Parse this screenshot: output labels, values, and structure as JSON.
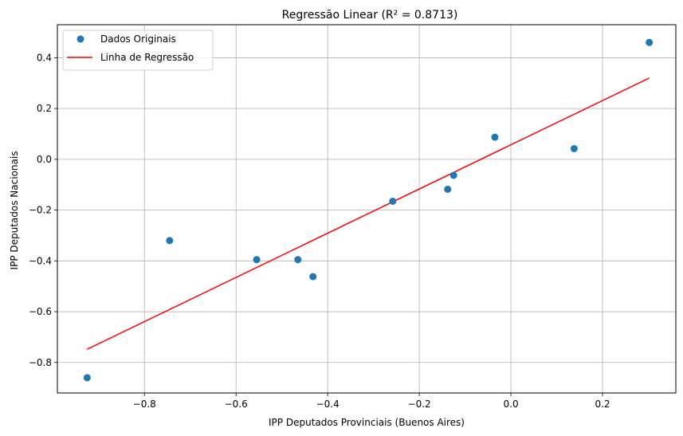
{
  "chart_data": {
    "type": "scatter",
    "title": "Regressão Linear (R² = 0.8713)",
    "xlabel": "IPP Deputados Provinciais (Buenos Aires)",
    "ylabel": "IPP Deputados Nacionais",
    "xlim": [
      -0.99,
      0.36
    ],
    "ylim": [
      -0.92,
      0.53
    ],
    "x_ticks": [
      -0.8,
      -0.6,
      -0.4,
      -0.2,
      0.0,
      0.2
    ],
    "x_tick_labels": [
      "−0.8",
      "−0.6",
      "−0.4",
      "−0.2",
      "0.0",
      "0.2"
    ],
    "y_ticks": [
      -0.8,
      -0.6,
      -0.4,
      -0.2,
      0.0,
      0.2,
      0.4
    ],
    "y_tick_labels": [
      "−0.8",
      "−0.6",
      "−0.4",
      "−0.2",
      "0.0",
      "0.2",
      "0.4"
    ],
    "grid": true,
    "legend_position": "top-left",
    "series": [
      {
        "name": "Dados Originais",
        "kind": "scatter",
        "color": "#1f77b4",
        "points": [
          {
            "x": -0.925,
            "y": -0.86
          },
          {
            "x": -0.745,
            "y": -0.32
          },
          {
            "x": -0.555,
            "y": -0.395
          },
          {
            "x": -0.465,
            "y": -0.395
          },
          {
            "x": -0.432,
            "y": -0.462
          },
          {
            "x": -0.258,
            "y": -0.165
          },
          {
            "x": -0.138,
            "y": -0.118
          },
          {
            "x": -0.125,
            "y": -0.063
          },
          {
            "x": -0.035,
            "y": 0.087
          },
          {
            "x": 0.138,
            "y": 0.042
          },
          {
            "x": 0.302,
            "y": 0.46
          }
        ]
      },
      {
        "name": "Linha de Regressão",
        "kind": "line",
        "color": "#ff0000",
        "points": [
          {
            "x": -0.925,
            "y": -0.748
          },
          {
            "x": 0.302,
            "y": 0.32
          }
        ]
      }
    ]
  }
}
